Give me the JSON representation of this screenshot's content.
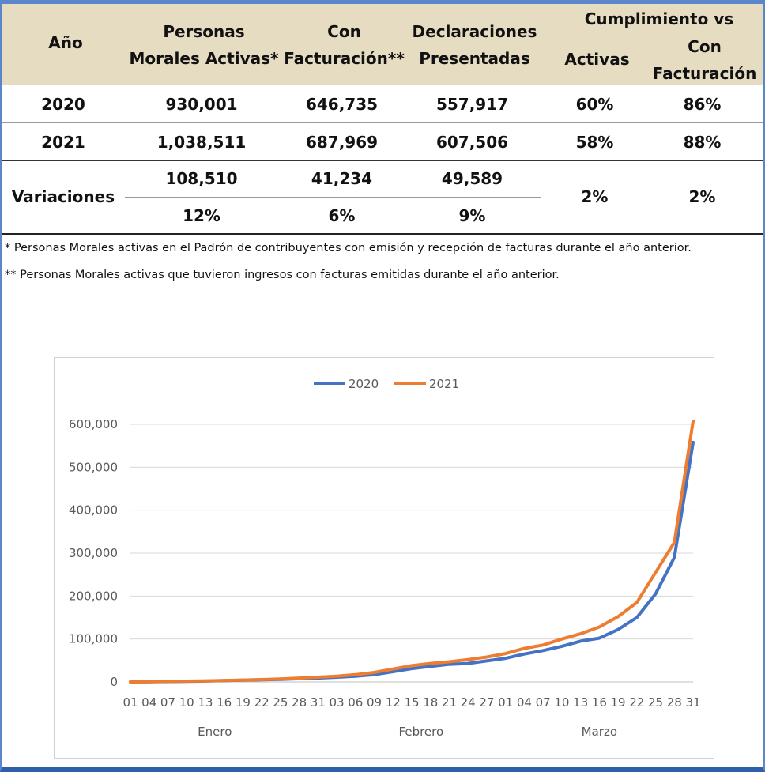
{
  "table": {
    "headers": {
      "year": "Año",
      "pm_activas": [
        "Personas",
        "Morales Activas*"
      ],
      "con_facturacion": [
        "Con",
        "Facturación**"
      ],
      "declaraciones": [
        "Declaraciones",
        "Presentadas"
      ],
      "cumplimiento": "Cumplimiento vs",
      "activas": "Activas",
      "con_fact_sub": [
        "Con",
        "Facturación"
      ]
    },
    "rows": [
      {
        "year": "2020",
        "pm_activas": "930,001",
        "con_facturacion": "646,735",
        "declaraciones": "557,917",
        "activas": "60%",
        "con_fact": "86%"
      },
      {
        "year": "2021",
        "pm_activas": "1,038,511",
        "con_facturacion": "687,969",
        "declaraciones": "607,506",
        "activas": "58%",
        "con_fact": "88%"
      }
    ],
    "variaciones": {
      "label": "Variaciones",
      "abs": [
        "108,510",
        "41,234",
        "49,589"
      ],
      "pct": [
        "12%",
        "6%",
        "9%"
      ],
      "activas": "2%",
      "con_fact": "2%"
    }
  },
  "notes": [
    "* Personas Morales activas en el Padrón de contribuyentes con emisión y recepción de facturas durante el año anterior.",
    "** Personas Morales activas que tuvieron ingresos con facturas emitidas durante el año anterior."
  ],
  "colors": {
    "header_bg": "#e6dcc2",
    "s2020": "#4472c4",
    "s2021": "#ed7d31",
    "frame": "#5b86c9"
  },
  "chart_data": {
    "type": "line",
    "x": [
      "01",
      "04",
      "07",
      "10",
      "13",
      "16",
      "19",
      "22",
      "25",
      "28",
      "31",
      "03",
      "06",
      "09",
      "12",
      "15",
      "18",
      "21",
      "24",
      "27",
      "01",
      "04",
      "07",
      "10",
      "13",
      "16",
      "19",
      "22",
      "25",
      "28",
      "31"
    ],
    "months": [
      "Enero",
      "Febrero",
      "Marzo"
    ],
    "ylim": [
      0,
      600000
    ],
    "yticks": [
      "0",
      "100,000",
      "200,000",
      "300,000",
      "400,000",
      "500,000",
      "600,000"
    ],
    "legend_position": "top",
    "grid": true,
    "series": [
      {
        "name": "2020",
        "values": [
          0,
          500,
          1000,
          1500,
          2000,
          3000,
          4000,
          5000,
          6000,
          7500,
          9000,
          11000,
          13500,
          17000,
          24000,
          31000,
          36000,
          41000,
          43000,
          49000,
          55000,
          65000,
          73000,
          83000,
          95000,
          102000,
          122000,
          150000,
          205000,
          290000,
          557917
        ]
      },
      {
        "name": "2021",
        "values": [
          0,
          600,
          1200,
          1800,
          2400,
          3500,
          4500,
          5500,
          7000,
          9000,
          11000,
          13500,
          17000,
          22000,
          30000,
          38000,
          43000,
          47000,
          52000,
          58000,
          66000,
          78000,
          86000,
          100000,
          112000,
          128000,
          152000,
          185000,
          255000,
          325000,
          607506
        ]
      }
    ]
  }
}
